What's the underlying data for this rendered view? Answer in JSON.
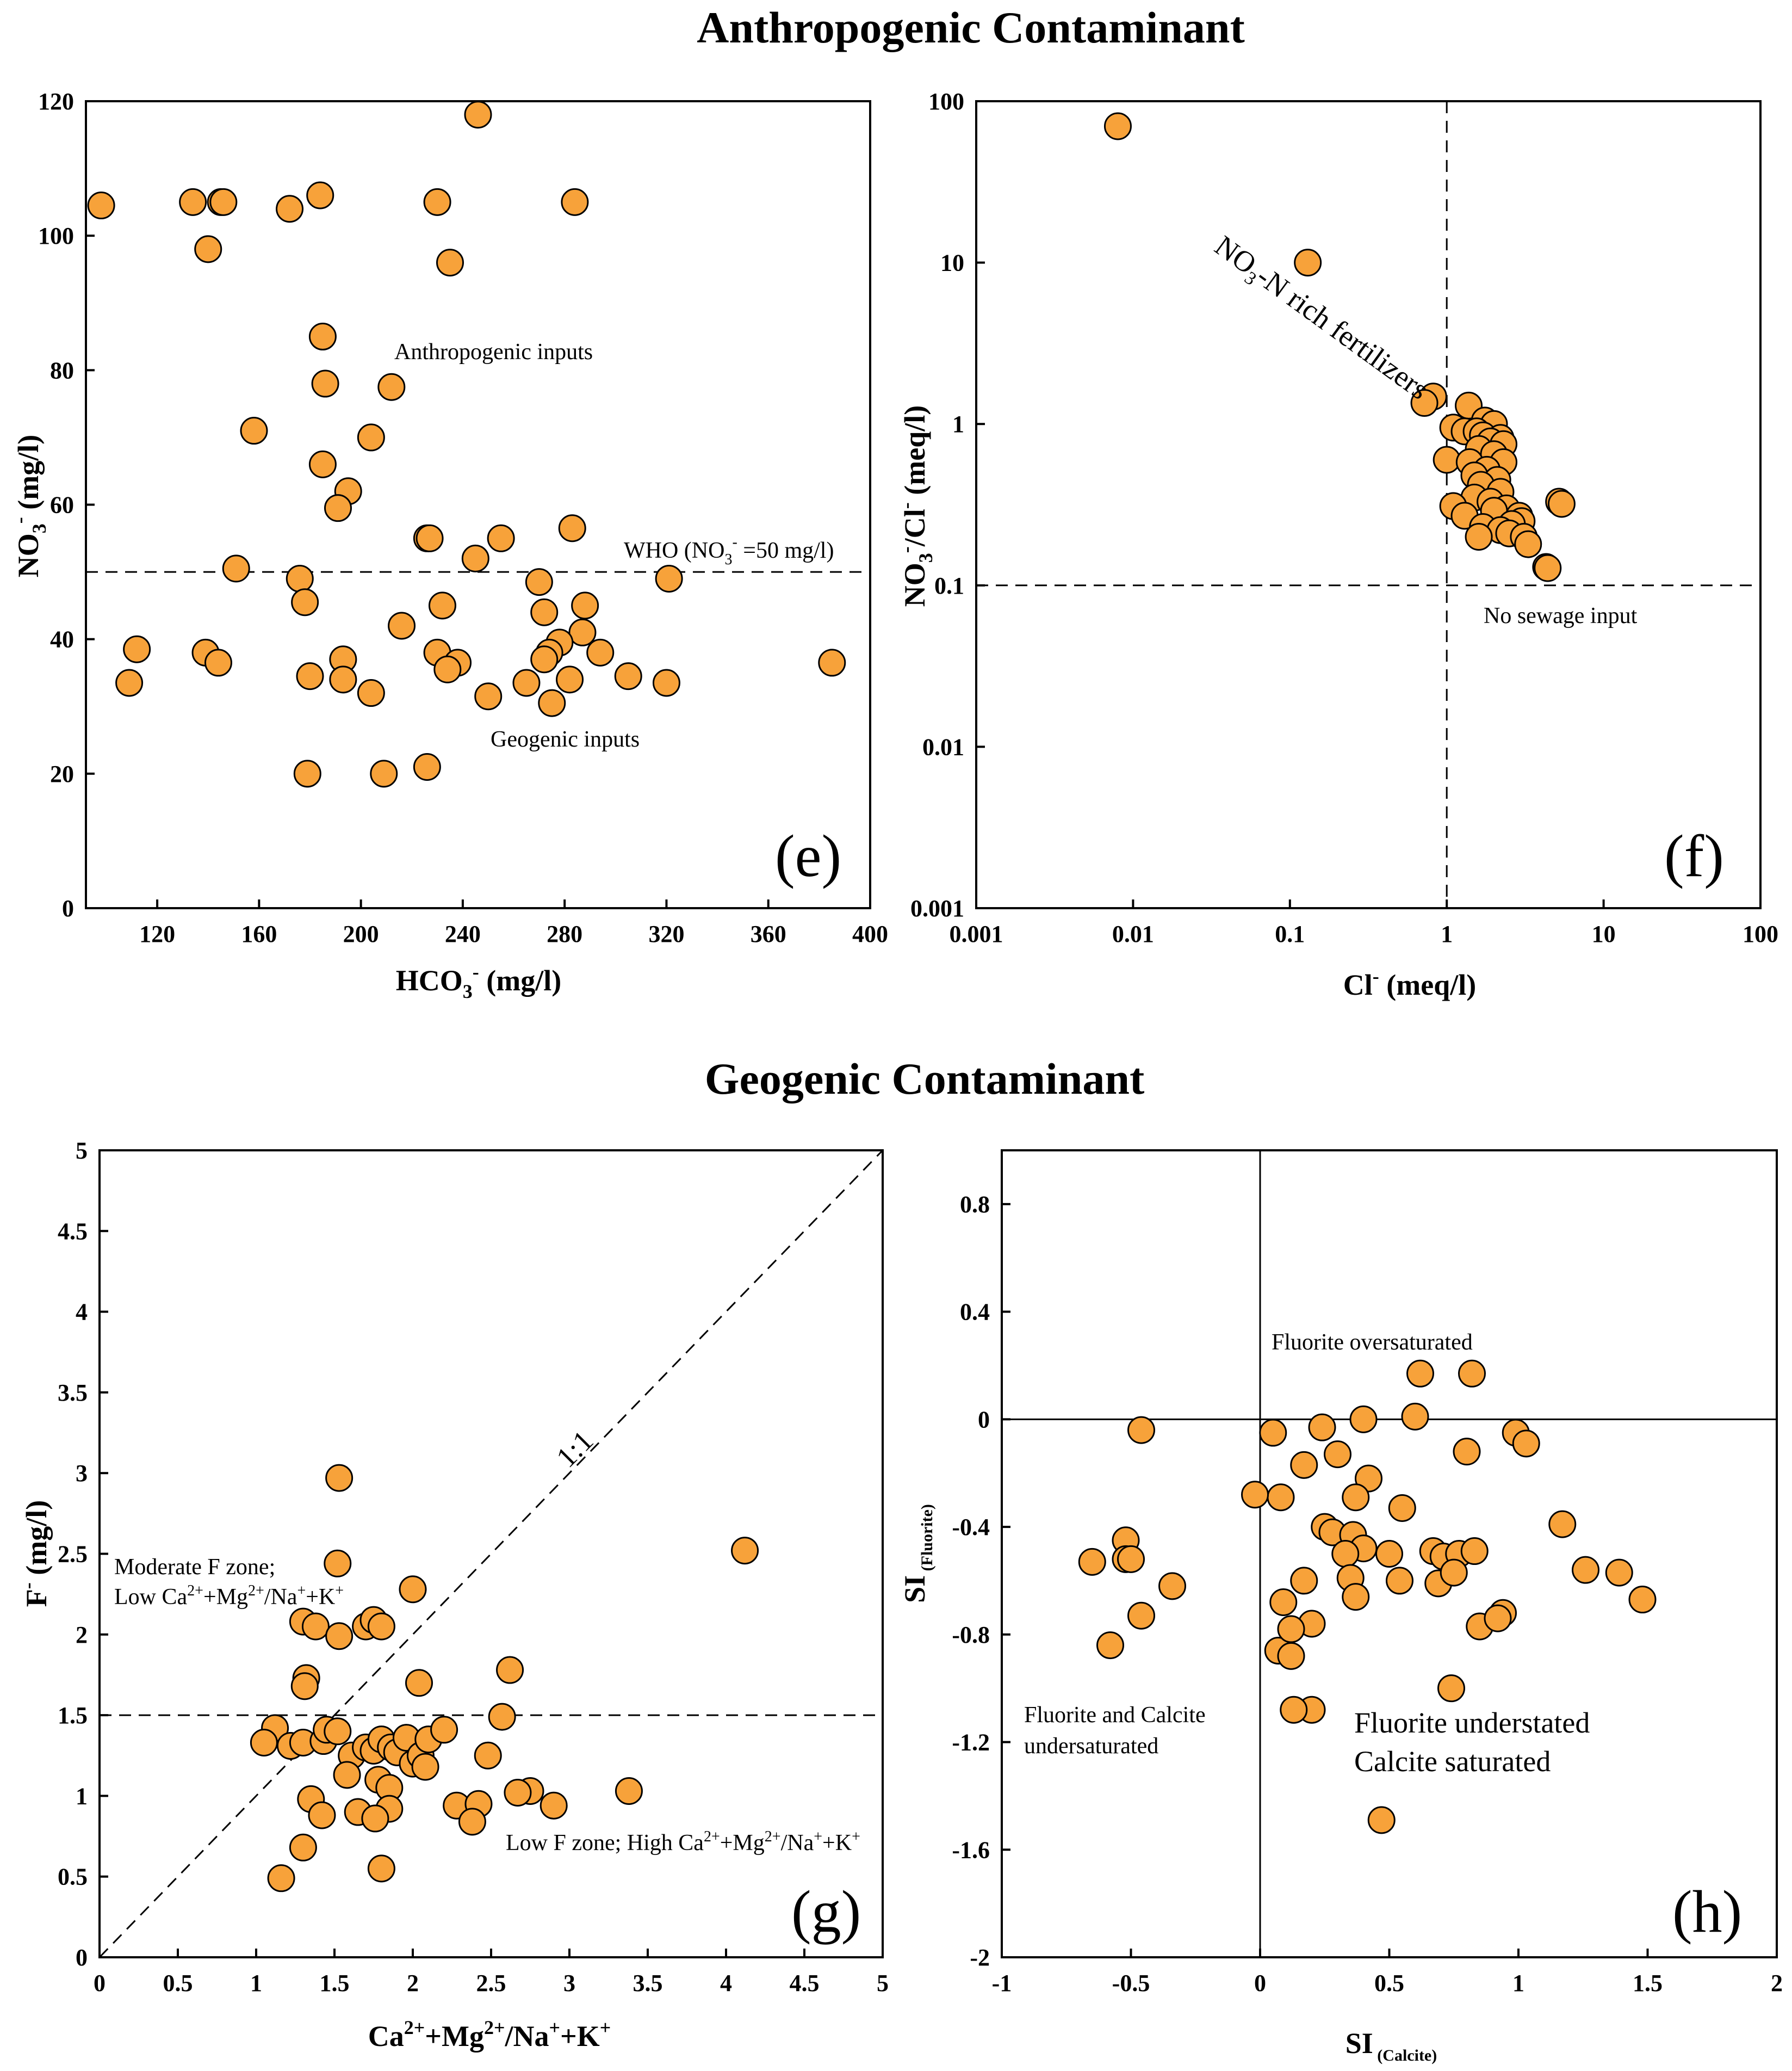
{
  "sections": {
    "anthropogenic_title": "Anthropogenic Contaminant",
    "geogenic_title": "Geogenic Contaminant"
  },
  "colors": {
    "point_fill": "#f7a23a",
    "point_stroke": "#000000"
  },
  "chart_data": [
    {
      "id": "e",
      "type": "scatter",
      "panel_label": "(e)",
      "xlabel": "HCO3- (mg/l)",
      "ylabel": "NO3- (mg/l)",
      "xlim": [
        92,
        400
      ],
      "ylim": [
        0,
        120
      ],
      "xticks": [
        120,
        160,
        200,
        240,
        280,
        320,
        360,
        400
      ],
      "yticks": [
        0,
        20,
        40,
        60,
        80,
        100,
        120
      ],
      "reference_lines": [
        {
          "type": "h",
          "value": 50
        }
      ],
      "annotations": [
        "Anthropogenic inputs",
        "WHO (NO3- =50 mg/l)",
        "Geogenic inputs"
      ],
      "points": [
        [
          98,
          104.5
        ],
        [
          134,
          105
        ],
        [
          145,
          105
        ],
        [
          146,
          105
        ],
        [
          140,
          98
        ],
        [
          172,
          104
        ],
        [
          184,
          106
        ],
        [
          230,
          105
        ],
        [
          235,
          96
        ],
        [
          246,
          118
        ],
        [
          284,
          105
        ],
        [
          185,
          85
        ],
        [
          186,
          78
        ],
        [
          212,
          77.5
        ],
        [
          158,
          71
        ],
        [
          185,
          66
        ],
        [
          204,
          70
        ],
        [
          195,
          62
        ],
        [
          191,
          59.5
        ],
        [
          226,
          55
        ],
        [
          227,
          55
        ],
        [
          255,
          55
        ],
        [
          245,
          52
        ],
        [
          283,
          56.5
        ],
        [
          151,
          50.5
        ],
        [
          176,
          49
        ],
        [
          178,
          45.5
        ],
        [
          270,
          48.5
        ],
        [
          321,
          49
        ],
        [
          272,
          44
        ],
        [
          232,
          45
        ],
        [
          288,
          45
        ],
        [
          216,
          42
        ],
        [
          287,
          41
        ],
        [
          278,
          39.5
        ],
        [
          112,
          38.5
        ],
        [
          139,
          38
        ],
        [
          144,
          36.5
        ],
        [
          193,
          37
        ],
        [
          230,
          38
        ],
        [
          238,
          36.5
        ],
        [
          234,
          35.5
        ],
        [
          274,
          38
        ],
        [
          294,
          38
        ],
        [
          272,
          37
        ],
        [
          180,
          34.5
        ],
        [
          193,
          34
        ],
        [
          204,
          32
        ],
        [
          250,
          31.5
        ],
        [
          265,
          33.5
        ],
        [
          282,
          34
        ],
        [
          305,
          34.5
        ],
        [
          320,
          33.5
        ],
        [
          385,
          36.5
        ],
        [
          275,
          30.5
        ],
        [
          109,
          33.5
        ],
        [
          179,
          20
        ],
        [
          209,
          20
        ],
        [
          226,
          21
        ]
      ]
    },
    {
      "id": "f",
      "type": "scatter",
      "panel_label": "(f)",
      "scale": "log-log",
      "xlabel": "Cl- (meq/l)",
      "ylabel": "NO3-/Cl- (meq/l)",
      "xlim": [
        0.001,
        100
      ],
      "ylim": [
        0.001,
        100
      ],
      "xticks": [
        0.001,
        0.01,
        0.1,
        1,
        10,
        100
      ],
      "xtick_labels": [
        "0.001",
        "0.01",
        "0.1",
        "1",
        "10",
        "100"
      ],
      "yticks": [
        0.001,
        0.01,
        0.1,
        1,
        10,
        100
      ],
      "ytick_labels": [
        "0.001",
        "0.01",
        "0.1",
        "1",
        "10",
        "100"
      ],
      "reference_lines": [
        {
          "type": "v",
          "value": 1
        },
        {
          "type": "h",
          "value": 0.1
        }
      ],
      "annotations": [
        "NO3-N rich fertilizers",
        "No sewage input"
      ],
      "points": [
        [
          0.008,
          70
        ],
        [
          0.13,
          10
        ],
        [
          0.82,
          1.48
        ],
        [
          0.72,
          1.35
        ],
        [
          1.38,
          1.3
        ],
        [
          1.75,
          1.05
        ],
        [
          2.0,
          1.0
        ],
        [
          1.1,
          0.95
        ],
        [
          1.3,
          0.9
        ],
        [
          1.55,
          0.9
        ],
        [
          1.7,
          0.85
        ],
        [
          2.2,
          0.82
        ],
        [
          1.9,
          0.78
        ],
        [
          2.3,
          0.75
        ],
        [
          1.6,
          0.7
        ],
        [
          2.0,
          0.65
        ],
        [
          1.0,
          0.6
        ],
        [
          1.4,
          0.58
        ],
        [
          2.3,
          0.58
        ],
        [
          1.8,
          0.52
        ],
        [
          1.5,
          0.48
        ],
        [
          2.1,
          0.45
        ],
        [
          1.65,
          0.42
        ],
        [
          2.2,
          0.38
        ],
        [
          1.5,
          0.35
        ],
        [
          1.9,
          0.33
        ],
        [
          1.1,
          0.31
        ],
        [
          2.4,
          0.3
        ],
        [
          2.0,
          0.29
        ],
        [
          1.3,
          0.27
        ],
        [
          2.9,
          0.27
        ],
        [
          3.0,
          0.25
        ],
        [
          2.6,
          0.24
        ],
        [
          1.7,
          0.23
        ],
        [
          2.2,
          0.22
        ],
        [
          2.5,
          0.21
        ],
        [
          3.1,
          0.2
        ],
        [
          1.6,
          0.2
        ],
        [
          3.3,
          0.18
        ],
        [
          5.2,
          0.33
        ],
        [
          5.4,
          0.32
        ],
        [
          4.3,
          0.13
        ],
        [
          4.4,
          0.128
        ]
      ]
    },
    {
      "id": "g",
      "type": "scatter",
      "panel_label": "(g)",
      "xlabel": "Ca2++Mg2+/Na++K+",
      "ylabel": "F- (mg/l)",
      "xlim": [
        0,
        5
      ],
      "ylim": [
        0,
        5
      ],
      "xticks": [
        0,
        0.5,
        1,
        1.5,
        2,
        2.5,
        3,
        3.5,
        4,
        4.5,
        5
      ],
      "xtick_labels": [
        "0",
        "0.5",
        "1",
        "1.5",
        "2",
        "2.5",
        "3",
        "3.5",
        "4",
        "4.5",
        "5"
      ],
      "yticks": [
        0,
        0.5,
        1,
        1.5,
        2,
        2.5,
        3,
        3.5,
        4,
        4.5,
        5
      ],
      "ytick_labels": [
        "0",
        "0.5",
        "1",
        "1.5",
        "2",
        "2.5",
        "3",
        "3.5",
        "4",
        "4.5",
        "5"
      ],
      "reference_lines": [
        {
          "type": "h",
          "value": 1.5
        },
        {
          "type": "diag",
          "value": 1
        }
      ],
      "annotations": [
        "1:1",
        "Moderate F zone;",
        "Low Ca2++Mg2+/Na++K+",
        "Low F zone; High Ca2++Mg2+/Na++K+"
      ],
      "points": [
        [
          1.53,
          2.97
        ],
        [
          4.12,
          2.52
        ],
        [
          1.52,
          2.44
        ],
        [
          2.0,
          2.28
        ],
        [
          1.3,
          2.08
        ],
        [
          1.38,
          2.05
        ],
        [
          1.7,
          2.05
        ],
        [
          1.75,
          2.09
        ],
        [
          1.8,
          2.05
        ],
        [
          1.53,
          1.99
        ],
        [
          1.32,
          1.73
        ],
        [
          1.31,
          1.68
        ],
        [
          2.04,
          1.7
        ],
        [
          2.62,
          1.78
        ],
        [
          2.57,
          1.49
        ],
        [
          1.12,
          1.42
        ],
        [
          1.05,
          1.33
        ],
        [
          1.22,
          1.31
        ],
        [
          1.3,
          1.33
        ],
        [
          1.43,
          1.34
        ],
        [
          1.45,
          1.41
        ],
        [
          1.52,
          1.4
        ],
        [
          1.61,
          1.25
        ],
        [
          1.7,
          1.3
        ],
        [
          1.75,
          1.28
        ],
        [
          1.8,
          1.35
        ],
        [
          1.86,
          1.3
        ],
        [
          1.9,
          1.27
        ],
        [
          1.96,
          1.36
        ],
        [
          2.0,
          1.2
        ],
        [
          2.05,
          1.25
        ],
        [
          2.1,
          1.35
        ],
        [
          2.2,
          1.41
        ],
        [
          1.58,
          1.13
        ],
        [
          1.78,
          1.1
        ],
        [
          1.85,
          1.05
        ],
        [
          2.08,
          1.18
        ],
        [
          2.48,
          1.25
        ],
        [
          2.75,
          1.03
        ],
        [
          2.67,
          1.02
        ],
        [
          3.38,
          1.03
        ],
        [
          1.35,
          0.98
        ],
        [
          1.42,
          0.88
        ],
        [
          1.65,
          0.9
        ],
        [
          1.85,
          0.92
        ],
        [
          2.28,
          0.94
        ],
        [
          2.42,
          0.95
        ],
        [
          2.38,
          0.84
        ],
        [
          2.9,
          0.94
        ],
        [
          1.76,
          0.86
        ],
        [
          1.3,
          0.68
        ],
        [
          1.16,
          0.49
        ],
        [
          1.8,
          0.55
        ]
      ]
    },
    {
      "id": "h",
      "type": "scatter",
      "panel_label": "(h)",
      "xlabel": "SI (Calcite)",
      "ylabel": "SI (Fluorite)",
      "xlim": [
        -1,
        2
      ],
      "ylim": [
        -2,
        1
      ],
      "xticks": [
        -1,
        -0.5,
        0,
        0.5,
        1,
        1.5,
        2
      ],
      "xtick_labels": [
        "-1",
        "-0.5",
        "0",
        "0.5",
        "1",
        "1.5",
        "2"
      ],
      "yticks": [
        -2,
        -1.6,
        -1.2,
        -0.8,
        -0.4,
        0,
        0.4,
        0.8
      ],
      "ytick_labels": [
        "-2",
        "-1.6",
        "-1.2",
        "-0.8",
        "-0.4",
        "0",
        "0.4",
        "0.8"
      ],
      "reference_lines": [
        {
          "type": "v",
          "value": 0
        },
        {
          "type": "h",
          "value": 0
        }
      ],
      "annotations": [
        "Fluorite oversaturated",
        "Fluorite and Calcite",
        "undersaturated",
        "Fluorite understated",
        "Calcite saturated"
      ],
      "points": [
        [
          0.62,
          0.17
        ],
        [
          0.82,
          0.17
        ],
        [
          0.6,
          0.01
        ],
        [
          0.4,
          0.0
        ],
        [
          0.24,
          -0.03
        ],
        [
          0.05,
          -0.05
        ],
        [
          -0.46,
          -0.04
        ],
        [
          0.99,
          -0.05
        ],
        [
          1.03,
          -0.09
        ],
        [
          0.8,
          -0.12
        ],
        [
          0.17,
          -0.17
        ],
        [
          0.3,
          -0.13
        ],
        [
          0.42,
          -0.22
        ],
        [
          0.08,
          -0.29
        ],
        [
          -0.02,
          -0.28
        ],
        [
          0.37,
          -0.29
        ],
        [
          0.55,
          -0.33
        ],
        [
          1.17,
          -0.39
        ],
        [
          0.25,
          -0.4
        ],
        [
          0.28,
          -0.42
        ],
        [
          0.36,
          -0.43
        ],
        [
          0.4,
          -0.48
        ],
        [
          0.33,
          -0.5
        ],
        [
          0.5,
          -0.5
        ],
        [
          0.67,
          -0.49
        ],
        [
          0.71,
          -0.51
        ],
        [
          0.77,
          -0.5
        ],
        [
          0.83,
          -0.49
        ],
        [
          -0.52,
          -0.45
        ],
        [
          -0.52,
          -0.52
        ],
        [
          -0.5,
          -0.52
        ],
        [
          -0.65,
          -0.53
        ],
        [
          0.35,
          -0.59
        ],
        [
          0.54,
          -0.6
        ],
        [
          0.69,
          -0.61
        ],
        [
          0.75,
          -0.57
        ],
        [
          1.26,
          -0.56
        ],
        [
          1.39,
          -0.57
        ],
        [
          0.17,
          -0.6
        ],
        [
          0.37,
          -0.66
        ],
        [
          0.09,
          -0.68
        ],
        [
          1.48,
          -0.67
        ],
        [
          -0.34,
          -0.62
        ],
        [
          -0.46,
          -0.73
        ],
        [
          0.07,
          -0.86
        ],
        [
          -0.58,
          -0.84
        ],
        [
          0.2,
          -0.76
        ],
        [
          0.85,
          -0.77
        ],
        [
          0.94,
          -0.72
        ],
        [
          0.92,
          -0.74
        ],
        [
          0.12,
          -0.78
        ],
        [
          0.12,
          -0.88
        ],
        [
          0.74,
          -1.0
        ],
        [
          0.2,
          -1.08
        ],
        [
          0.13,
          -1.08
        ],
        [
          0.47,
          -1.49
        ]
      ]
    }
  ]
}
